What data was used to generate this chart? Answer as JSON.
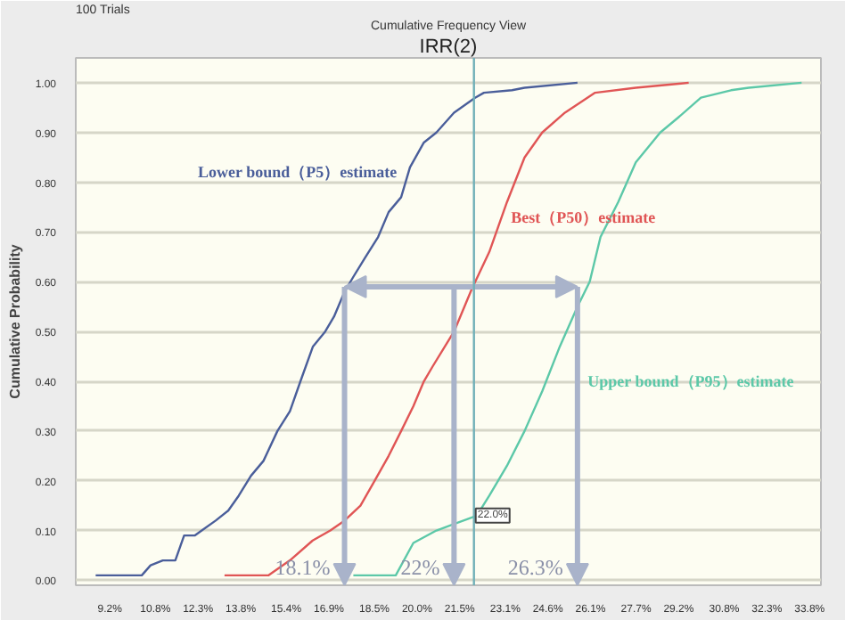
{
  "chart_data": {
    "type": "line",
    "title": "Cumulative Frequency View",
    "subtitle": "IRR(2)",
    "ylabel": "Cumulative Probability",
    "annotations": [
      "100 Trials",
      {
        "text": "18.1%",
        "x": 17.45,
        "y": 0.59
      },
      {
        "text": "22%",
        "x": 21.3,
        "y": 0.59
      },
      {
        "text": "26.3%",
        "x": 25.64,
        "y": 0.59
      }
    ],
    "series": [
      {
        "name": "Lower bound（P5）estimate",
        "color": "#4a5e9a",
        "x": [
          8.7,
          10.32,
          10.63,
          11.06,
          11.5,
          11.81,
          12.18,
          12.43,
          12.92,
          13.36,
          13.73,
          14.16,
          14.6,
          15.09,
          15.53,
          15.9,
          16.34,
          16.77,
          17.08,
          17.45,
          17.76,
          18.19,
          18.63,
          19.0,
          19.44,
          19.75,
          20.24,
          20.68,
          21.3,
          22.04,
          22.35,
          23.34,
          23.78,
          25.64
        ],
        "values": [
          0.01,
          0.01,
          0.03,
          0.04,
          0.04,
          0.09,
          0.09,
          0.1,
          0.12,
          0.14,
          0.17,
          0.21,
          0.24,
          0.3,
          0.34,
          0.4,
          0.47,
          0.5,
          0.53,
          0.58,
          0.61,
          0.65,
          0.69,
          0.74,
          0.77,
          0.83,
          0.88,
          0.9,
          0.94,
          0.97,
          0.98,
          0.985,
          0.99,
          1.0
        ]
      },
      {
        "name": "Best（P50）estimate",
        "color": "#e05555",
        "x": [
          13.23,
          14.78,
          15.53,
          16.33,
          16.95,
          17.45,
          18.01,
          18.51,
          19.0,
          19.44,
          19.87,
          20.24,
          20.55,
          21.3,
          21.92,
          22.54,
          23.16,
          23.78,
          24.4,
          25.2,
          26.26,
          27.69,
          29.55
        ],
        "values": [
          0.01,
          0.01,
          0.04,
          0.08,
          0.1,
          0.12,
          0.15,
          0.2,
          0.25,
          0.3,
          0.35,
          0.4,
          0.43,
          0.5,
          0.585,
          0.66,
          0.76,
          0.85,
          0.9,
          0.94,
          0.98,
          0.99,
          1.0
        ]
      },
      {
        "name": "Upper bound（P95）estimate",
        "color": "#5cc8a8",
        "x": [
          17.76,
          19.25,
          19.87,
          20.68,
          22.1,
          22.54,
          23.16,
          23.78,
          24.4,
          25.02,
          25.64,
          26.07,
          26.45,
          27.07,
          27.69,
          28.55,
          29.18,
          29.98,
          31.04,
          31.66,
          33.52
        ],
        "values": [
          0.01,
          0.01,
          0.075,
          0.1,
          0.13,
          0.17,
          0.23,
          0.3,
          0.38,
          0.47,
          0.55,
          0.6,
          0.69,
          0.76,
          0.84,
          0.9,
          0.93,
          0.97,
          0.985,
          0.99,
          1.0
        ]
      },
      {
        "type": "line",
        "color": "#a9b3ca",
        "x": [
          17.45,
          25.64
        ],
        "values": [
          0.59,
          0.59
        ]
      }
    ],
    "ref_lines": [
      {
        "axis": "x",
        "value": 22.0,
        "label": "22.0%",
        "color": "#70b0b8"
      }
    ],
    "xlim": [
      8.0,
      34.2
    ],
    "ylim": [
      -0.01,
      1.05
    ],
    "xticks": [
      {
        "value": 9.2,
        "label": "9.2%"
      },
      {
        "value": 10.8,
        "label": "10.8%"
      },
      {
        "value": 12.3,
        "label": "12.3%"
      },
      {
        "value": 13.8,
        "label": "13.8%"
      },
      {
        "value": 15.4,
        "label": "15.4%"
      },
      {
        "value": 16.9,
        "label": "16.9%"
      },
      {
        "value": 18.5,
        "label": "18.5%"
      },
      {
        "value": 20.0,
        "label": "20.0%"
      },
      {
        "value": 21.5,
        "label": "21.5%"
      },
      {
        "value": 23.1,
        "label": "23.1%"
      },
      {
        "value": 24.6,
        "label": "24.6%"
      },
      {
        "value": 26.1,
        "label": "26.1%"
      },
      {
        "value": 27.7,
        "label": "27.7%"
      },
      {
        "value": 29.2,
        "label": "29.2%"
      },
      {
        "value": 30.8,
        "label": "30.8%"
      },
      {
        "value": 32.3,
        "label": "32.3%"
      },
      {
        "value": 33.8,
        "label": "33.8%"
      }
    ],
    "yticks": [
      {
        "value": 0,
        "label": "0.00"
      },
      {
        "value": 0.1,
        "label": "0.10"
      },
      {
        "value": 0.2,
        "label": "0.20"
      },
      {
        "value": 0.3,
        "label": "0.30"
      },
      {
        "value": 0.4,
        "label": "0.40"
      },
      {
        "value": 0.5,
        "label": "0.50"
      },
      {
        "value": 0.6,
        "label": "0.60"
      },
      {
        "value": 0.7,
        "label": "0.70"
      },
      {
        "value": 0.8,
        "label": "0.80"
      },
      {
        "value": 0.9,
        "label": "0.90"
      },
      {
        "value": 1.0,
        "label": "1.00"
      }
    ],
    "grid": "y",
    "marker": "none",
    "line_style": "solid"
  }
}
